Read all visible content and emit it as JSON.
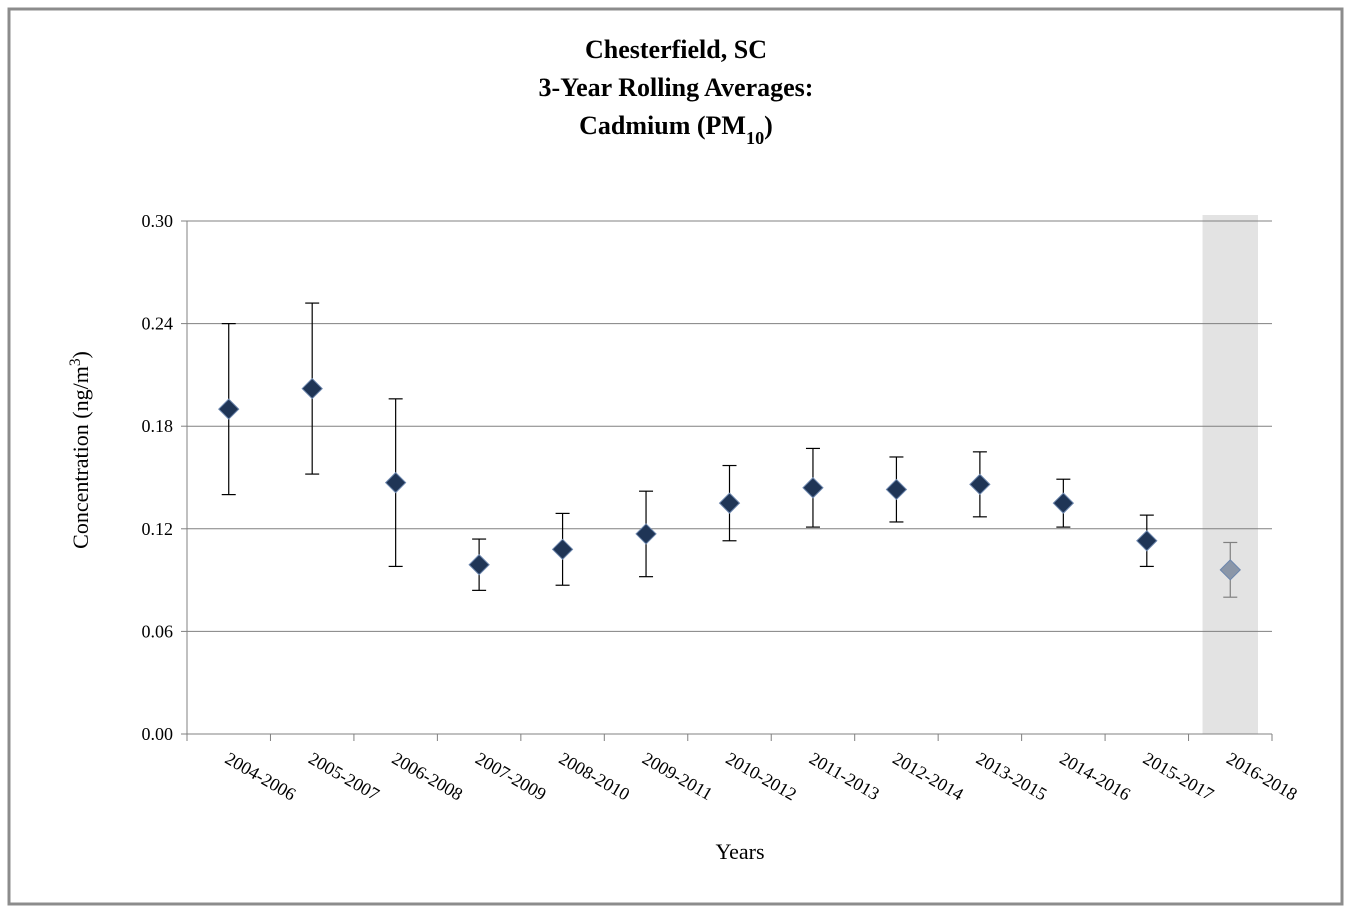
{
  "chart_data": {
    "type": "errorbar",
    "title": [
      [
        {
          "text": "Chesterfield, SC"
        }
      ],
      [
        {
          "text": "3-Year Rolling Averages:"
        }
      ],
      [
        {
          "text": "Cadmium (PM"
        },
        {
          "text": "10",
          "baseline": "sub"
        },
        {
          "text": ")"
        }
      ]
    ],
    "x_label": "Years",
    "y_label": [
      {
        "text": "Concentration (ng/m"
      },
      {
        "text": "3",
        "baseline": "super"
      },
      {
        "text": ")"
      }
    ],
    "categories": [
      "2004-2006",
      "2005-2007",
      "2006-2008",
      "2007-2009",
      "2008-2010",
      "2009-2011",
      "2010-2012",
      "2011-2013",
      "2012-2014",
      "2013-2015",
      "2014-2016",
      "2015-2017",
      "2016-2018"
    ],
    "values": [
      0.19,
      0.202,
      0.147,
      0.099,
      0.108,
      0.117,
      0.135,
      0.144,
      0.143,
      0.146,
      0.135,
      0.113,
      0.096
    ],
    "errors": [
      0.05,
      0.05,
      0.049,
      0.015,
      0.021,
      0.025,
      0.022,
      0.023,
      0.019,
      0.019,
      0.014,
      0.015,
      0.016
    ],
    "colors": [
      "#1f3556",
      "#1f3556",
      "#1f3556",
      "#1f3556",
      "#1f3556",
      "#1f3556",
      "#1f3556",
      "#1f3556",
      "#1f3556",
      "#1f3556",
      "#1f3556",
      "#1f3556",
      "#8a96a8"
    ],
    "shaded": [
      false,
      false,
      false,
      false,
      false,
      false,
      false,
      false,
      false,
      false,
      false,
      false,
      true
    ],
    "shade_color": "#e3e3e3",
    "ylim": [
      0,
      0.3
    ],
    "yticks": [
      {
        "value": 0,
        "label": "0.00"
      },
      {
        "value": 0.06,
        "label": "0.06"
      },
      {
        "value": 0.12,
        "label": "0.12"
      },
      {
        "value": 0.18,
        "label": "0.18"
      },
      {
        "value": 0.24,
        "label": "0.24"
      },
      {
        "value": 0.3,
        "label": "0.30"
      }
    ],
    "grid": true
  }
}
